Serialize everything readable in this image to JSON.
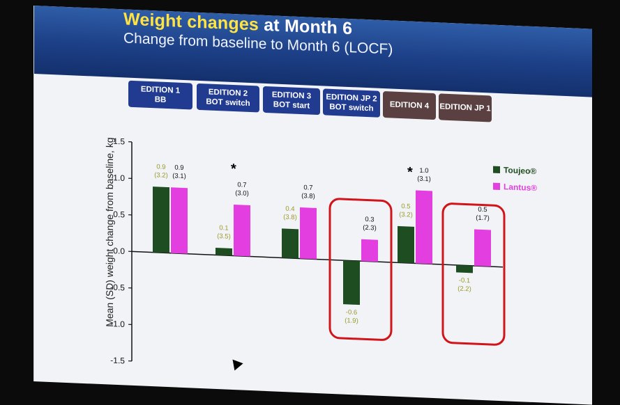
{
  "header": {
    "title_part1": "Weight changes",
    "title_part2": " at Month 6",
    "subtitle": "Change from baseline to Month 6 (LOCF)"
  },
  "tabs": [
    {
      "line1": "EDITION 1",
      "line2": "BB"
    },
    {
      "line1": "EDITION 2",
      "line2": "BOT switch"
    },
    {
      "line1": "EDITION 3",
      "line2": "BOT start"
    },
    {
      "line1": "EDITION JP 2",
      "line2": "BOT switch"
    },
    {
      "line1": "EDITION 4",
      "line2": ""
    },
    {
      "line1": "EDITION JP 1",
      "line2": ""
    }
  ],
  "significance_marker": "*",
  "chart_data": {
    "type": "bar",
    "categories": [
      "EDITION 1 BB",
      "EDITION 2 BOT switch",
      "EDITION 3 BOT start",
      "EDITION JP 2 BOT switch",
      "EDITION 4",
      "EDITION JP 1"
    ],
    "ylabel": "Mean (SD) weight change from baseline, kg",
    "ylim": [
      -1.5,
      1.5
    ],
    "yticks": [
      "1.5",
      "1.0",
      "0.5",
      "0.0",
      "-0.5",
      "-1.0",
      "-1.5"
    ],
    "series": [
      {
        "name": "Toujeo®",
        "color": "#1f4d22",
        "label_color": "#9a9a2a",
        "values": [
          0.9,
          0.1,
          0.4,
          -0.6,
          0.5,
          -0.1
        ],
        "sd_labels": [
          "(3.2)",
          "(3.5)",
          "(3.8)",
          "(1.9)",
          "(3.2)",
          "(2.2)"
        ]
      },
      {
        "name": "Lantus®",
        "color": "#e23ee0",
        "label_color": "#111111",
        "values": [
          0.9,
          0.7,
          0.7,
          0.3,
          1.0,
          0.5
        ],
        "sd_labels": [
          "(3.1)",
          "(3.0)",
          "(3.8)",
          "(2.3)",
          "(3.1)",
          "(1.7)"
        ]
      }
    ],
    "significant": [
      false,
      true,
      false,
      false,
      true,
      false
    ],
    "highlighted": [
      false,
      false,
      false,
      true,
      false,
      true
    ],
    "legend_position": "top-right"
  }
}
